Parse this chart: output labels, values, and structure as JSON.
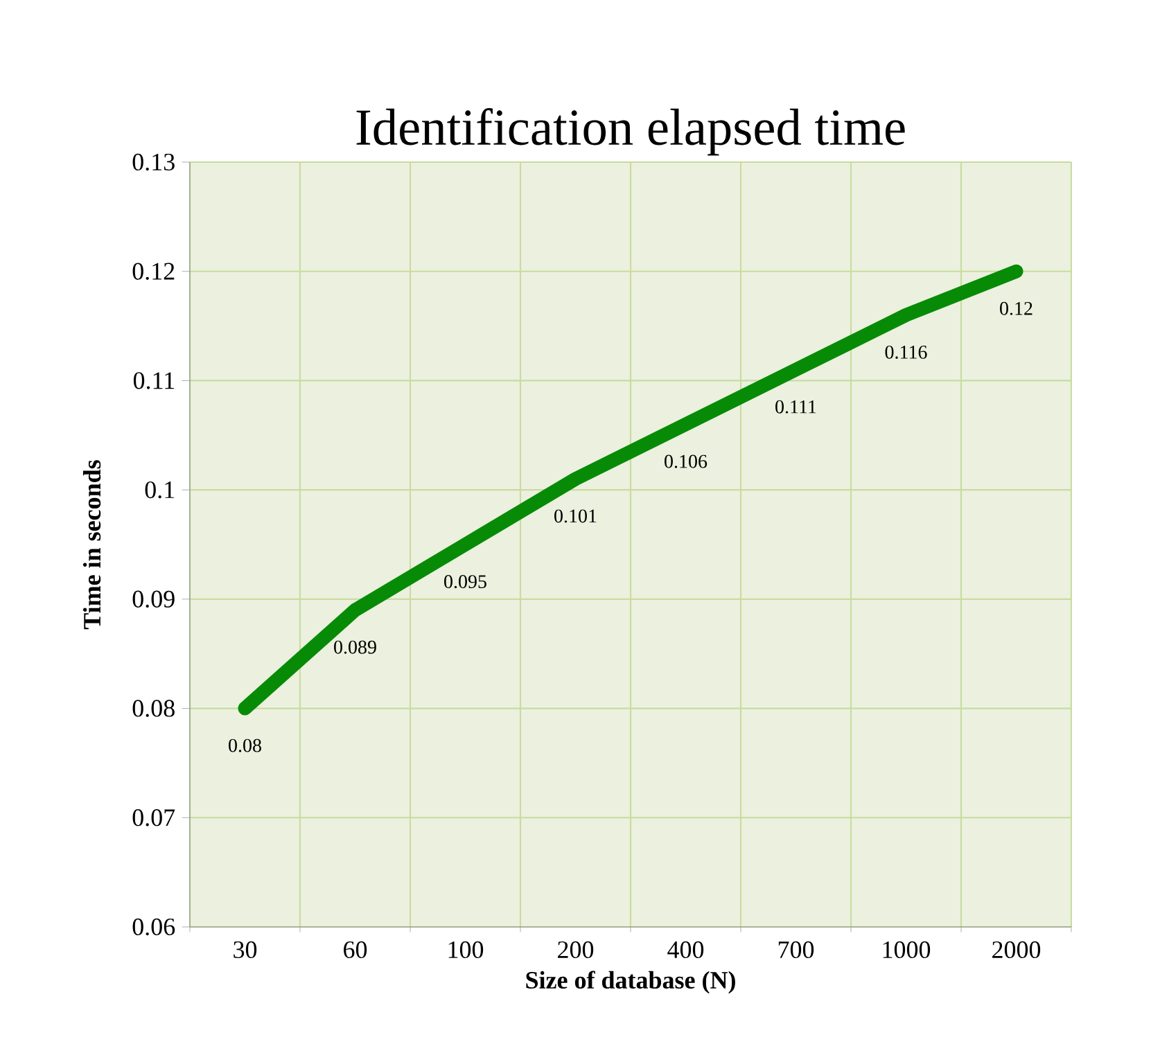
{
  "chart_data": {
    "type": "line",
    "title": "Identification elapsed time",
    "xlabel": "Size of database (N)",
    "ylabel": "Time in seconds",
    "categories": [
      "30",
      "60",
      "100",
      "200",
      "400",
      "700",
      "1000",
      "2000"
    ],
    "series": [
      {
        "color": "#078b07",
        "values": [
          0.08,
          0.089,
          0.095,
          0.101,
          0.106,
          0.111,
          0.116,
          0.12
        ]
      }
    ],
    "ylim": [
      0.06,
      0.13
    ],
    "yticks": [
      0.06,
      0.07,
      0.08,
      0.09,
      0.1,
      0.11,
      0.12,
      0.13
    ],
    "grid": true,
    "data_labels": true,
    "marker": "none",
    "line_style": "solid"
  }
}
